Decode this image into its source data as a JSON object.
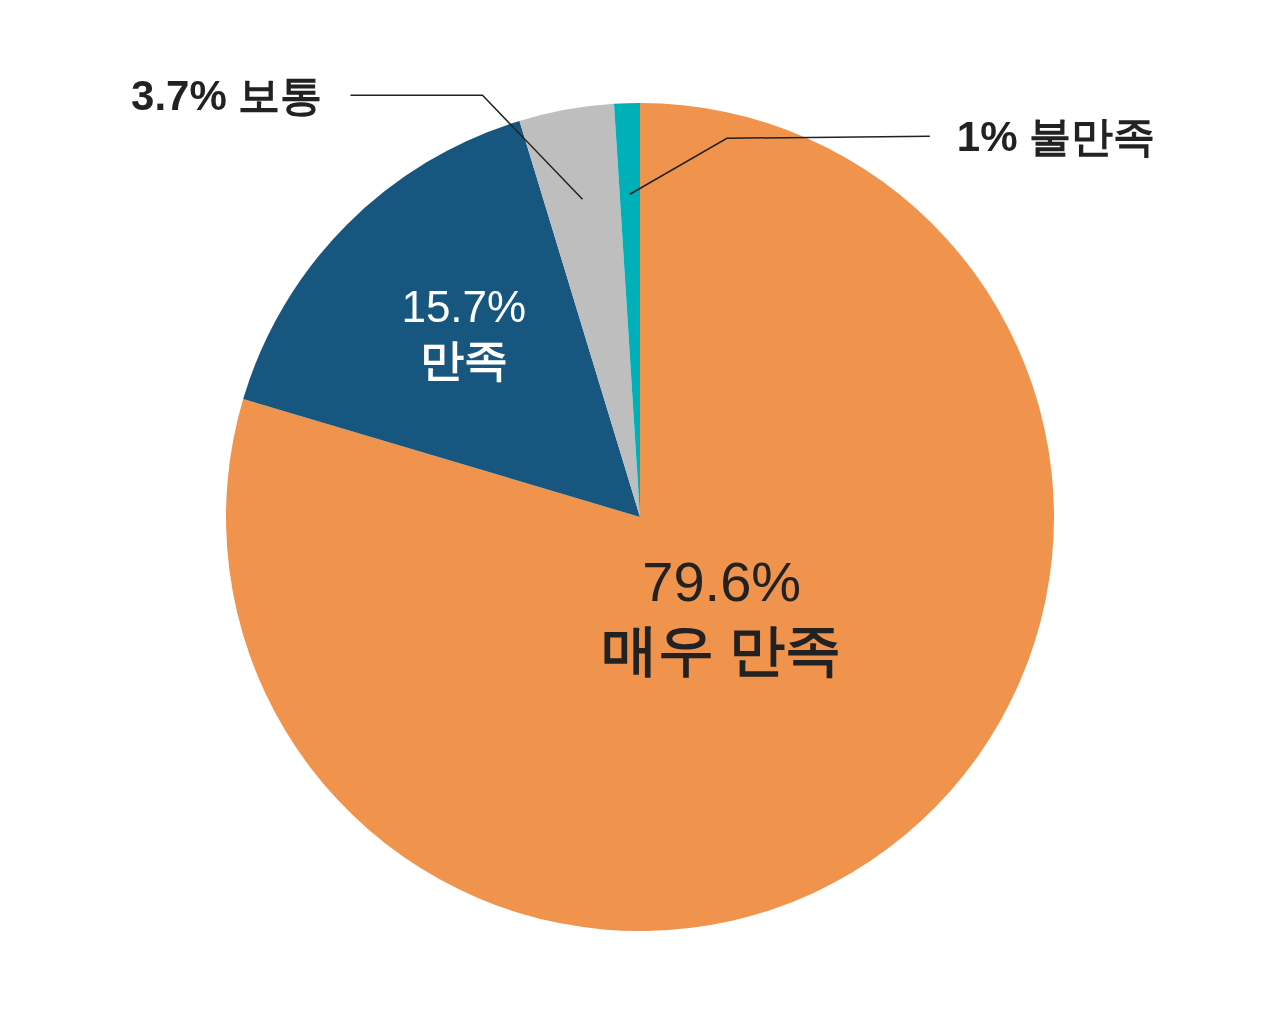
{
  "chart_data": {
    "type": "pie",
    "categories": [
      "매우 만족",
      "만족",
      "보통",
      "불만족"
    ],
    "values": [
      79.6,
      15.7,
      3.7,
      1
    ],
    "value_labels": [
      "79.6%",
      "15.7%",
      "3.7%",
      "1%"
    ],
    "colors": [
      "#ef934d",
      "#17567f",
      "#bebebe",
      "#00b0b9"
    ]
  }
}
